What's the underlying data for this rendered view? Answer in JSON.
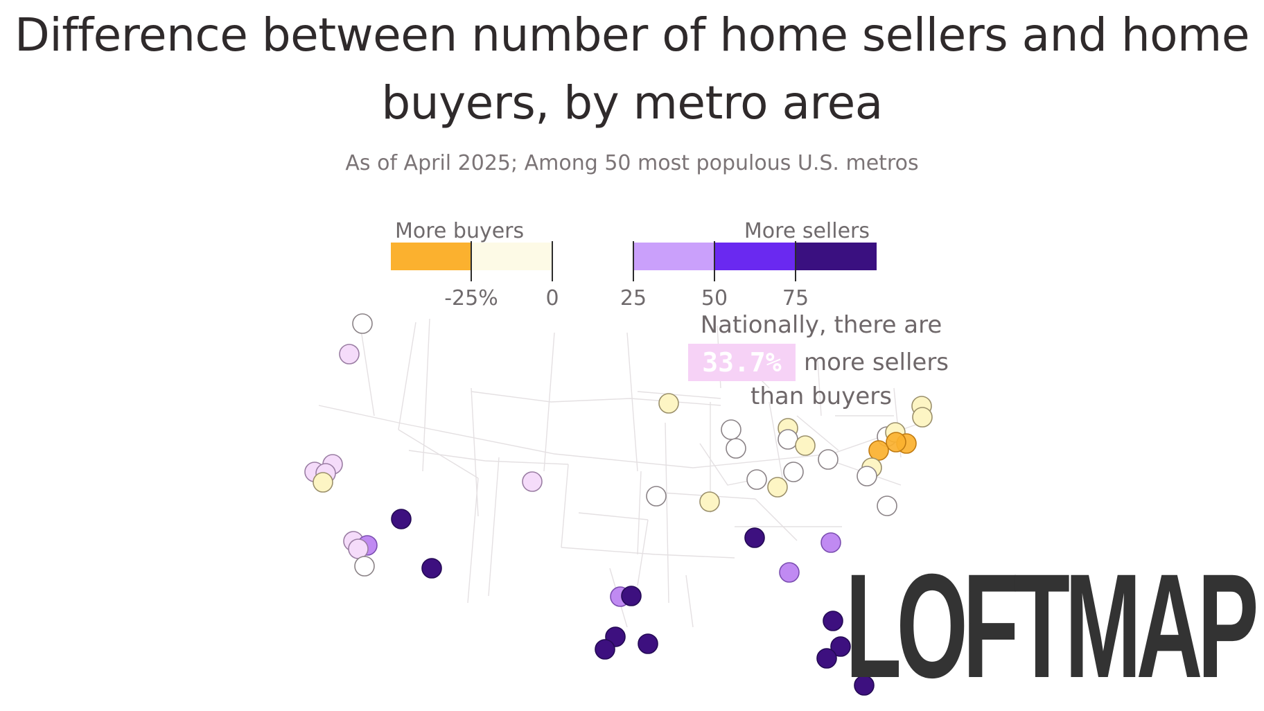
{
  "title": "Difference between number of home sellers and home buyers, by metro area",
  "subtitle": "As of April 2025; Among 50 most populous U.S. metros",
  "legend": {
    "left_label": "More buyers",
    "right_label": "More sellers",
    "ticks": [
      "-25%",
      "0",
      "25",
      "50",
      "75"
    ],
    "bins": [
      {
        "range": "< -25%",
        "color": "#fbb12f"
      },
      {
        "range": "-25% to 0",
        "color": "#fdfae6"
      },
      {
        "range": "0 to 25",
        "color": "#ffffff"
      },
      {
        "range": "25 to 50",
        "color": "#caa0fb"
      },
      {
        "range": "50 to 75",
        "color": "#6a29f0"
      },
      {
        "range": "> 75",
        "color": "#3a1080"
      }
    ]
  },
  "annotation": {
    "line1": "Nationally, there are",
    "highlight": "33.7%",
    "line2": "more sellers",
    "line3": "than buyers"
  },
  "logo": "LOFTMAP",
  "colors": {
    "strong_buyers": "#fbb12f",
    "mild_buyers": "#fdf5c4",
    "neutral": "#ffffff",
    "mild_sellers": "#f5dcfa",
    "medium_sellers": "#c08af2",
    "strong_sellers": "#3d107f"
  }
}
